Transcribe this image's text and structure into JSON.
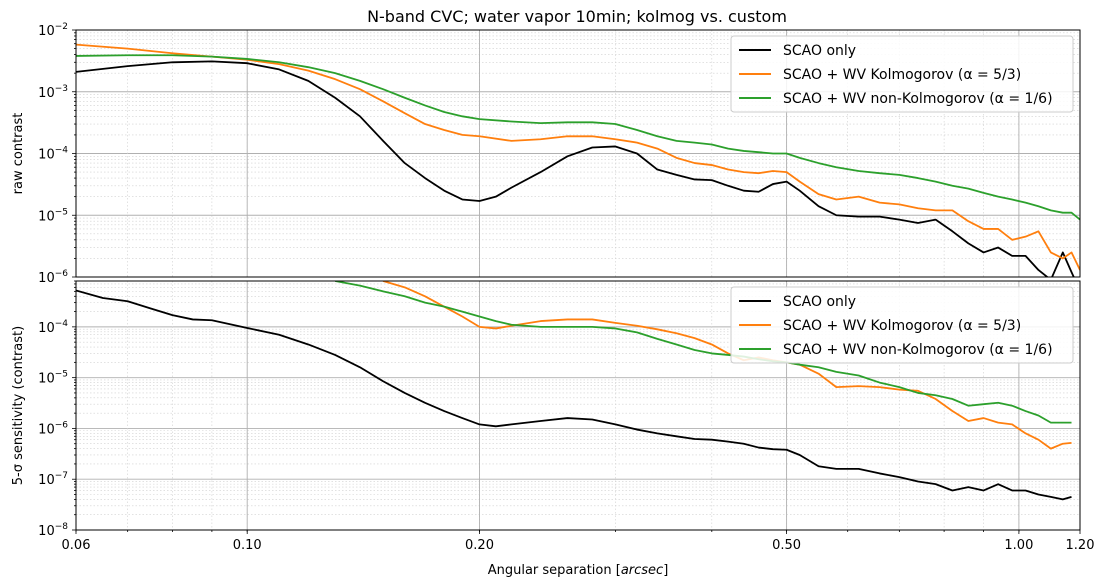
{
  "title": "N-band CVC; water vapor 10min; kolmog vs. custom",
  "colors": {
    "scao": "#000000",
    "kolmogorov": "#ff7f0e",
    "non_kolmogorov": "#2ca02c",
    "grid_major": "#b0b0b0",
    "grid_minor": "#d0d0d0"
  },
  "chart_data": [
    {
      "type": "line",
      "xscale": "log",
      "yscale": "log",
      "xlim": [
        0.06,
        1.2
      ],
      "ylim": [
        1e-06,
        0.01
      ],
      "grid": true,
      "legend_position": "top-right",
      "ylabel": "raw contrast",
      "xlabel": "",
      "yticks": [
        {
          "value": 1e-06,
          "mant": "10",
          "exp": "−6"
        },
        {
          "value": 1e-05,
          "mant": "10",
          "exp": "−5"
        },
        {
          "value": 0.0001,
          "mant": "10",
          "exp": "−4"
        },
        {
          "value": 0.001,
          "mant": "10",
          "exp": "−3"
        },
        {
          "value": 0.01,
          "mant": "10",
          "exp": "−2"
        }
      ],
      "series": [
        {
          "name": "SCAO only",
          "color_key": "scao",
          "x": [
            0.06,
            0.07,
            0.08,
            0.09,
            0.1,
            0.11,
            0.12,
            0.13,
            0.14,
            0.15,
            0.16,
            0.17,
            0.18,
            0.19,
            0.2,
            0.21,
            0.22,
            0.24,
            0.26,
            0.28,
            0.3,
            0.32,
            0.34,
            0.36,
            0.38,
            0.4,
            0.42,
            0.44,
            0.46,
            0.48,
            0.5,
            0.52,
            0.55,
            0.58,
            0.62,
            0.66,
            0.7,
            0.74,
            0.78,
            0.82,
            0.86,
            0.9,
            0.94,
            0.98,
            1.02,
            1.06,
            1.1,
            1.14,
            1.17,
            1.2
          ],
          "y": [
            0.0021,
            0.0026,
            0.003,
            0.0031,
            0.0029,
            0.0023,
            0.0015,
            0.0008,
            0.0004,
            0.00016,
            7e-05,
            4e-05,
            2.5e-05,
            1.8e-05,
            1.7e-05,
            2e-05,
            2.8e-05,
            5e-05,
            9e-05,
            0.000125,
            0.00013,
            0.0001,
            5.5e-05,
            4.5e-05,
            3.8e-05,
            3.7e-05,
            3e-05,
            2.5e-05,
            2.4e-05,
            3.2e-05,
            3.5e-05,
            2.5e-05,
            1.4e-05,
            1e-05,
            9.5e-06,
            9.5e-06,
            8.5e-06,
            7.5e-06,
            8.5e-06,
            5.5e-06,
            3.5e-06,
            2.5e-06,
            3e-06,
            2.2e-06,
            2.2e-06,
            1.3e-06,
            9e-07,
            2.5e-06,
            1.2e-06,
            6e-07
          ]
        },
        {
          "name": "SCAO + WV Kolmogorov (α = 5/3)",
          "color_key": "kolmogorov",
          "x": [
            0.06,
            0.07,
            0.08,
            0.09,
            0.1,
            0.11,
            0.12,
            0.13,
            0.14,
            0.15,
            0.16,
            0.17,
            0.18,
            0.19,
            0.2,
            0.22,
            0.24,
            0.26,
            0.28,
            0.3,
            0.32,
            0.34,
            0.36,
            0.38,
            0.4,
            0.42,
            0.44,
            0.46,
            0.48,
            0.5,
            0.52,
            0.55,
            0.58,
            0.62,
            0.66,
            0.7,
            0.74,
            0.78,
            0.82,
            0.86,
            0.9,
            0.94,
            0.98,
            1.02,
            1.06,
            1.1,
            1.14,
            1.17,
            1.2
          ],
          "y": [
            0.0058,
            0.005,
            0.0042,
            0.0037,
            0.0033,
            0.0028,
            0.0022,
            0.0016,
            0.0011,
            0.0007,
            0.00045,
            0.0003,
            0.00024,
            0.0002,
            0.00019,
            0.00016,
            0.00017,
            0.00019,
            0.00019,
            0.00017,
            0.00015,
            0.00012,
            8.5e-05,
            7e-05,
            6.5e-05,
            5.5e-05,
            5e-05,
            4.8e-05,
            5.2e-05,
            5e-05,
            3.5e-05,
            2.2e-05,
            1.8e-05,
            2e-05,
            1.6e-05,
            1.5e-05,
            1.3e-05,
            1.2e-05,
            1.2e-05,
            8e-06,
            6e-06,
            6e-06,
            4e-06,
            4.5e-06,
            5.5e-06,
            2.5e-06,
            2e-06,
            2.5e-06,
            1.3e-06
          ]
        },
        {
          "name": "SCAO + WV non-Kolmogorov (α = 1/6)",
          "color_key": "non_kolmogorov",
          "x": [
            0.06,
            0.07,
            0.08,
            0.09,
            0.1,
            0.11,
            0.12,
            0.13,
            0.14,
            0.15,
            0.16,
            0.17,
            0.18,
            0.19,
            0.2,
            0.22,
            0.24,
            0.26,
            0.28,
            0.3,
            0.32,
            0.34,
            0.36,
            0.38,
            0.4,
            0.42,
            0.44,
            0.46,
            0.48,
            0.5,
            0.52,
            0.55,
            0.58,
            0.62,
            0.66,
            0.7,
            0.74,
            0.78,
            0.82,
            0.86,
            0.9,
            0.94,
            0.98,
            1.02,
            1.06,
            1.1,
            1.14,
            1.17,
            1.2
          ],
          "y": [
            0.0038,
            0.0039,
            0.0039,
            0.0037,
            0.0034,
            0.003,
            0.0025,
            0.002,
            0.0015,
            0.0011,
            0.0008,
            0.0006,
            0.00047,
            0.0004,
            0.00036,
            0.00033,
            0.00031,
            0.00032,
            0.00032,
            0.0003,
            0.00024,
            0.00019,
            0.00016,
            0.00015,
            0.00014,
            0.00012,
            0.00011,
            0.000105,
            0.0001,
            0.0001,
            8.5e-05,
            7e-05,
            6e-05,
            5.2e-05,
            4.8e-05,
            4.5e-05,
            4e-05,
            3.5e-05,
            3e-05,
            2.7e-05,
            2.3e-05,
            2e-05,
            1.8e-05,
            1.6e-05,
            1.4e-05,
            1.2e-05,
            1.1e-05,
            1.1e-05,
            8.5e-06
          ]
        }
      ]
    },
    {
      "type": "line",
      "xscale": "log",
      "yscale": "log",
      "xlim": [
        0.06,
        1.2
      ],
      "ylim": [
        1e-08,
        0.0008
      ],
      "grid": true,
      "legend_position": "top-right",
      "ylabel": "5-σ sensitivity (contrast)",
      "xlabel": "Angular separation [arcsec]",
      "yticks": [
        {
          "value": 1e-08,
          "mant": "10",
          "exp": "−8"
        },
        {
          "value": 1e-07,
          "mant": "10",
          "exp": "−7"
        },
        {
          "value": 1e-06,
          "mant": "10",
          "exp": "−6"
        },
        {
          "value": 1e-05,
          "mant": "10",
          "exp": "−5"
        },
        {
          "value": 0.0001,
          "mant": "10",
          "exp": "−4"
        }
      ],
      "xticks": [
        {
          "value": 0.06,
          "label": "0.06"
        },
        {
          "value": 0.1,
          "label": "0.10"
        },
        {
          "value": 0.2,
          "label": "0.20"
        },
        {
          "value": 0.5,
          "label": "0.50"
        },
        {
          "value": 1.0,
          "label": "1.00"
        },
        {
          "value": 1.2,
          "label": "1.20"
        }
      ],
      "series": [
        {
          "name": "SCAO only",
          "color_key": "scao",
          "x": [
            0.06,
            0.065,
            0.07,
            0.075,
            0.08,
            0.085,
            0.09,
            0.1,
            0.11,
            0.12,
            0.13,
            0.14,
            0.15,
            0.16,
            0.17,
            0.18,
            0.19,
            0.2,
            0.21,
            0.22,
            0.24,
            0.26,
            0.28,
            0.3,
            0.32,
            0.34,
            0.36,
            0.38,
            0.4,
            0.42,
            0.44,
            0.46,
            0.48,
            0.5,
            0.52,
            0.55,
            0.58,
            0.62,
            0.66,
            0.7,
            0.74,
            0.78,
            0.82,
            0.86,
            0.9,
            0.94,
            0.98,
            1.02,
            1.06,
            1.1,
            1.14,
            1.17
          ],
          "y": [
            0.00052,
            0.00037,
            0.00032,
            0.00023,
            0.00017,
            0.00014,
            0.000135,
            9.5e-05,
            7e-05,
            4.5e-05,
            2.8e-05,
            1.6e-05,
            8.5e-06,
            5e-06,
            3.2e-06,
            2.2e-06,
            1.6e-06,
            1.2e-06,
            1.1e-06,
            1.2e-06,
            1.4e-06,
            1.6e-06,
            1.5e-06,
            1.2e-06,
            9.5e-07,
            8e-07,
            7e-07,
            6.2e-07,
            6e-07,
            5.5e-07,
            5e-07,
            4.2e-07,
            3.9e-07,
            3.8e-07,
            3e-07,
            1.8e-07,
            1.6e-07,
            1.6e-07,
            1.3e-07,
            1.1e-07,
            9e-08,
            8e-08,
            6e-08,
            7e-08,
            6e-08,
            8e-08,
            6e-08,
            6e-08,
            5e-08,
            4.5e-08,
            4e-08,
            4.5e-08
          ]
        },
        {
          "name": "SCAO + WV Kolmogorov (α = 5/3)",
          "color_key": "kolmogorov",
          "x": [
            0.15,
            0.16,
            0.17,
            0.18,
            0.19,
            0.2,
            0.21,
            0.22,
            0.24,
            0.26,
            0.28,
            0.3,
            0.32,
            0.34,
            0.36,
            0.38,
            0.4,
            0.42,
            0.44,
            0.46,
            0.48,
            0.5,
            0.52,
            0.55,
            0.58,
            0.62,
            0.66,
            0.7,
            0.74,
            0.78,
            0.82,
            0.86,
            0.9,
            0.94,
            0.98,
            1.02,
            1.06,
            1.1,
            1.14,
            1.17
          ],
          "y": [
            0.0008,
            0.0006,
            0.0004,
            0.00025,
            0.00016,
            0.0001,
            9.31e-05,
            0.000105,
            0.00013,
            0.00014,
            0.00014,
            0.00012,
            0.000105,
            8.95e-05,
            7.5e-05,
            6e-05,
            4.5e-05,
            3e-05,
            2.2e-05,
            2.5e-05,
            2.2e-05,
            2e-05,
            1.8e-05,
            1.2e-05,
            6.5e-06,
            6.8e-06,
            6.5e-06,
            5.8e-06,
            5.5e-06,
            3.8e-06,
            2.2e-06,
            1.4e-06,
            1.6e-06,
            1.3e-06,
            1.2e-06,
            8e-07,
            6e-07,
            4e-07,
            5e-07,
            5.2e-07
          ]
        },
        {
          "name": "SCAO + WV non-Kolmogorov (α = 1/6)",
          "color_key": "non_kolmogorov",
          "x": [
            0.13,
            0.14,
            0.15,
            0.16,
            0.17,
            0.18,
            0.19,
            0.2,
            0.21,
            0.22,
            0.24,
            0.26,
            0.28,
            0.3,
            0.32,
            0.34,
            0.36,
            0.38,
            0.4,
            0.42,
            0.44,
            0.46,
            0.48,
            0.5,
            0.52,
            0.55,
            0.58,
            0.62,
            0.66,
            0.7,
            0.74,
            0.78,
            0.82,
            0.86,
            0.9,
            0.94,
            0.98,
            1.02,
            1.06,
            1.1,
            1.14,
            1.17
          ],
          "y": [
            0.0008,
            0.00065,
            0.0005,
            0.0004,
            0.0003,
            0.00025,
            0.0002,
            0.00016,
            0.00013,
            0.00011,
            0.0001,
            0.0001,
            9.98e-05,
            9.3e-05,
            7.8e-05,
            5.8e-05,
            4.5e-05,
            3.5e-05,
            3e-05,
            2.8e-05,
            2.6e-05,
            2.3e-05,
            2.1e-05,
            2e-05,
            1.8e-05,
            1.6e-05,
            1.3e-05,
            1.1e-05,
            8e-06,
            6.5e-06,
            5e-06,
            4.5e-06,
            3.8e-06,
            2.8e-06,
            3e-06,
            3.2e-06,
            2.8e-06,
            2.2e-06,
            1.8e-06,
            1.3e-06,
            1.3e-06,
            1.3e-06
          ]
        }
      ]
    }
  ]
}
